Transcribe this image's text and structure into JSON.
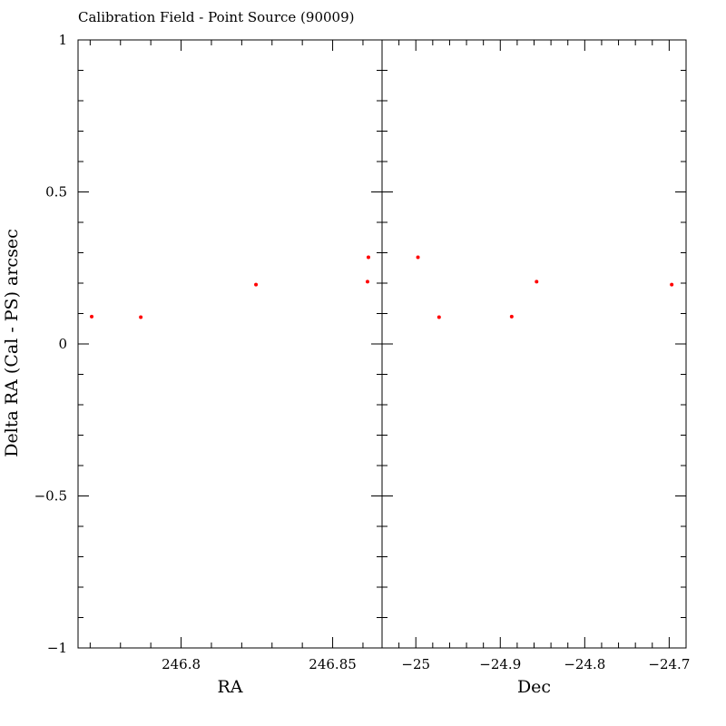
{
  "chart_data": {
    "type": "scatter",
    "title": "Calibration Field - Point Source (90009)",
    "ylabel": "Delta RA (Cal - PS) arcsec",
    "ylim": [
      -1,
      1
    ],
    "y_ticks": [
      {
        "value": 1,
        "label": "1"
      },
      {
        "value": 0.5,
        "label": "0.5"
      },
      {
        "value": 0,
        "label": "0"
      },
      {
        "value": -0.5,
        "label": "-0.5"
      },
      {
        "value": -1,
        "label": "-1"
      }
    ],
    "point_color": "#ff0000",
    "panels": [
      {
        "xlabel": "RA",
        "xlim": [
          246.766,
          246.8663
        ],
        "x_ticks": [
          {
            "value": 246.8,
            "label": "246.8"
          },
          {
            "value": 246.85,
            "label": "246.85"
          }
        ],
        "points": [
          {
            "x": 246.7705,
            "y": 0.09
          },
          {
            "x": 246.7867,
            "y": 0.088
          },
          {
            "x": 246.8247,
            "y": 0.195
          },
          {
            "x": 246.8615,
            "y": 0.205
          },
          {
            "x": 246.8618,
            "y": 0.285
          }
        ]
      },
      {
        "xlabel": "Dec",
        "xlim": [
          -25.04,
          -24.68
        ],
        "x_ticks": [
          {
            "value": -25,
            "label": "-25"
          },
          {
            "value": -24.9,
            "label": "-24.9"
          },
          {
            "value": -24.8,
            "label": "-24.8"
          },
          {
            "value": -24.7,
            "label": "-24.7"
          }
        ],
        "points": [
          {
            "x": -24.9975,
            "y": 0.285
          },
          {
            "x": -24.9725,
            "y": 0.088
          },
          {
            "x": -24.8865,
            "y": 0.09
          },
          {
            "x": -24.857,
            "y": 0.205
          },
          {
            "x": -24.697,
            "y": 0.195
          }
        ]
      }
    ]
  }
}
